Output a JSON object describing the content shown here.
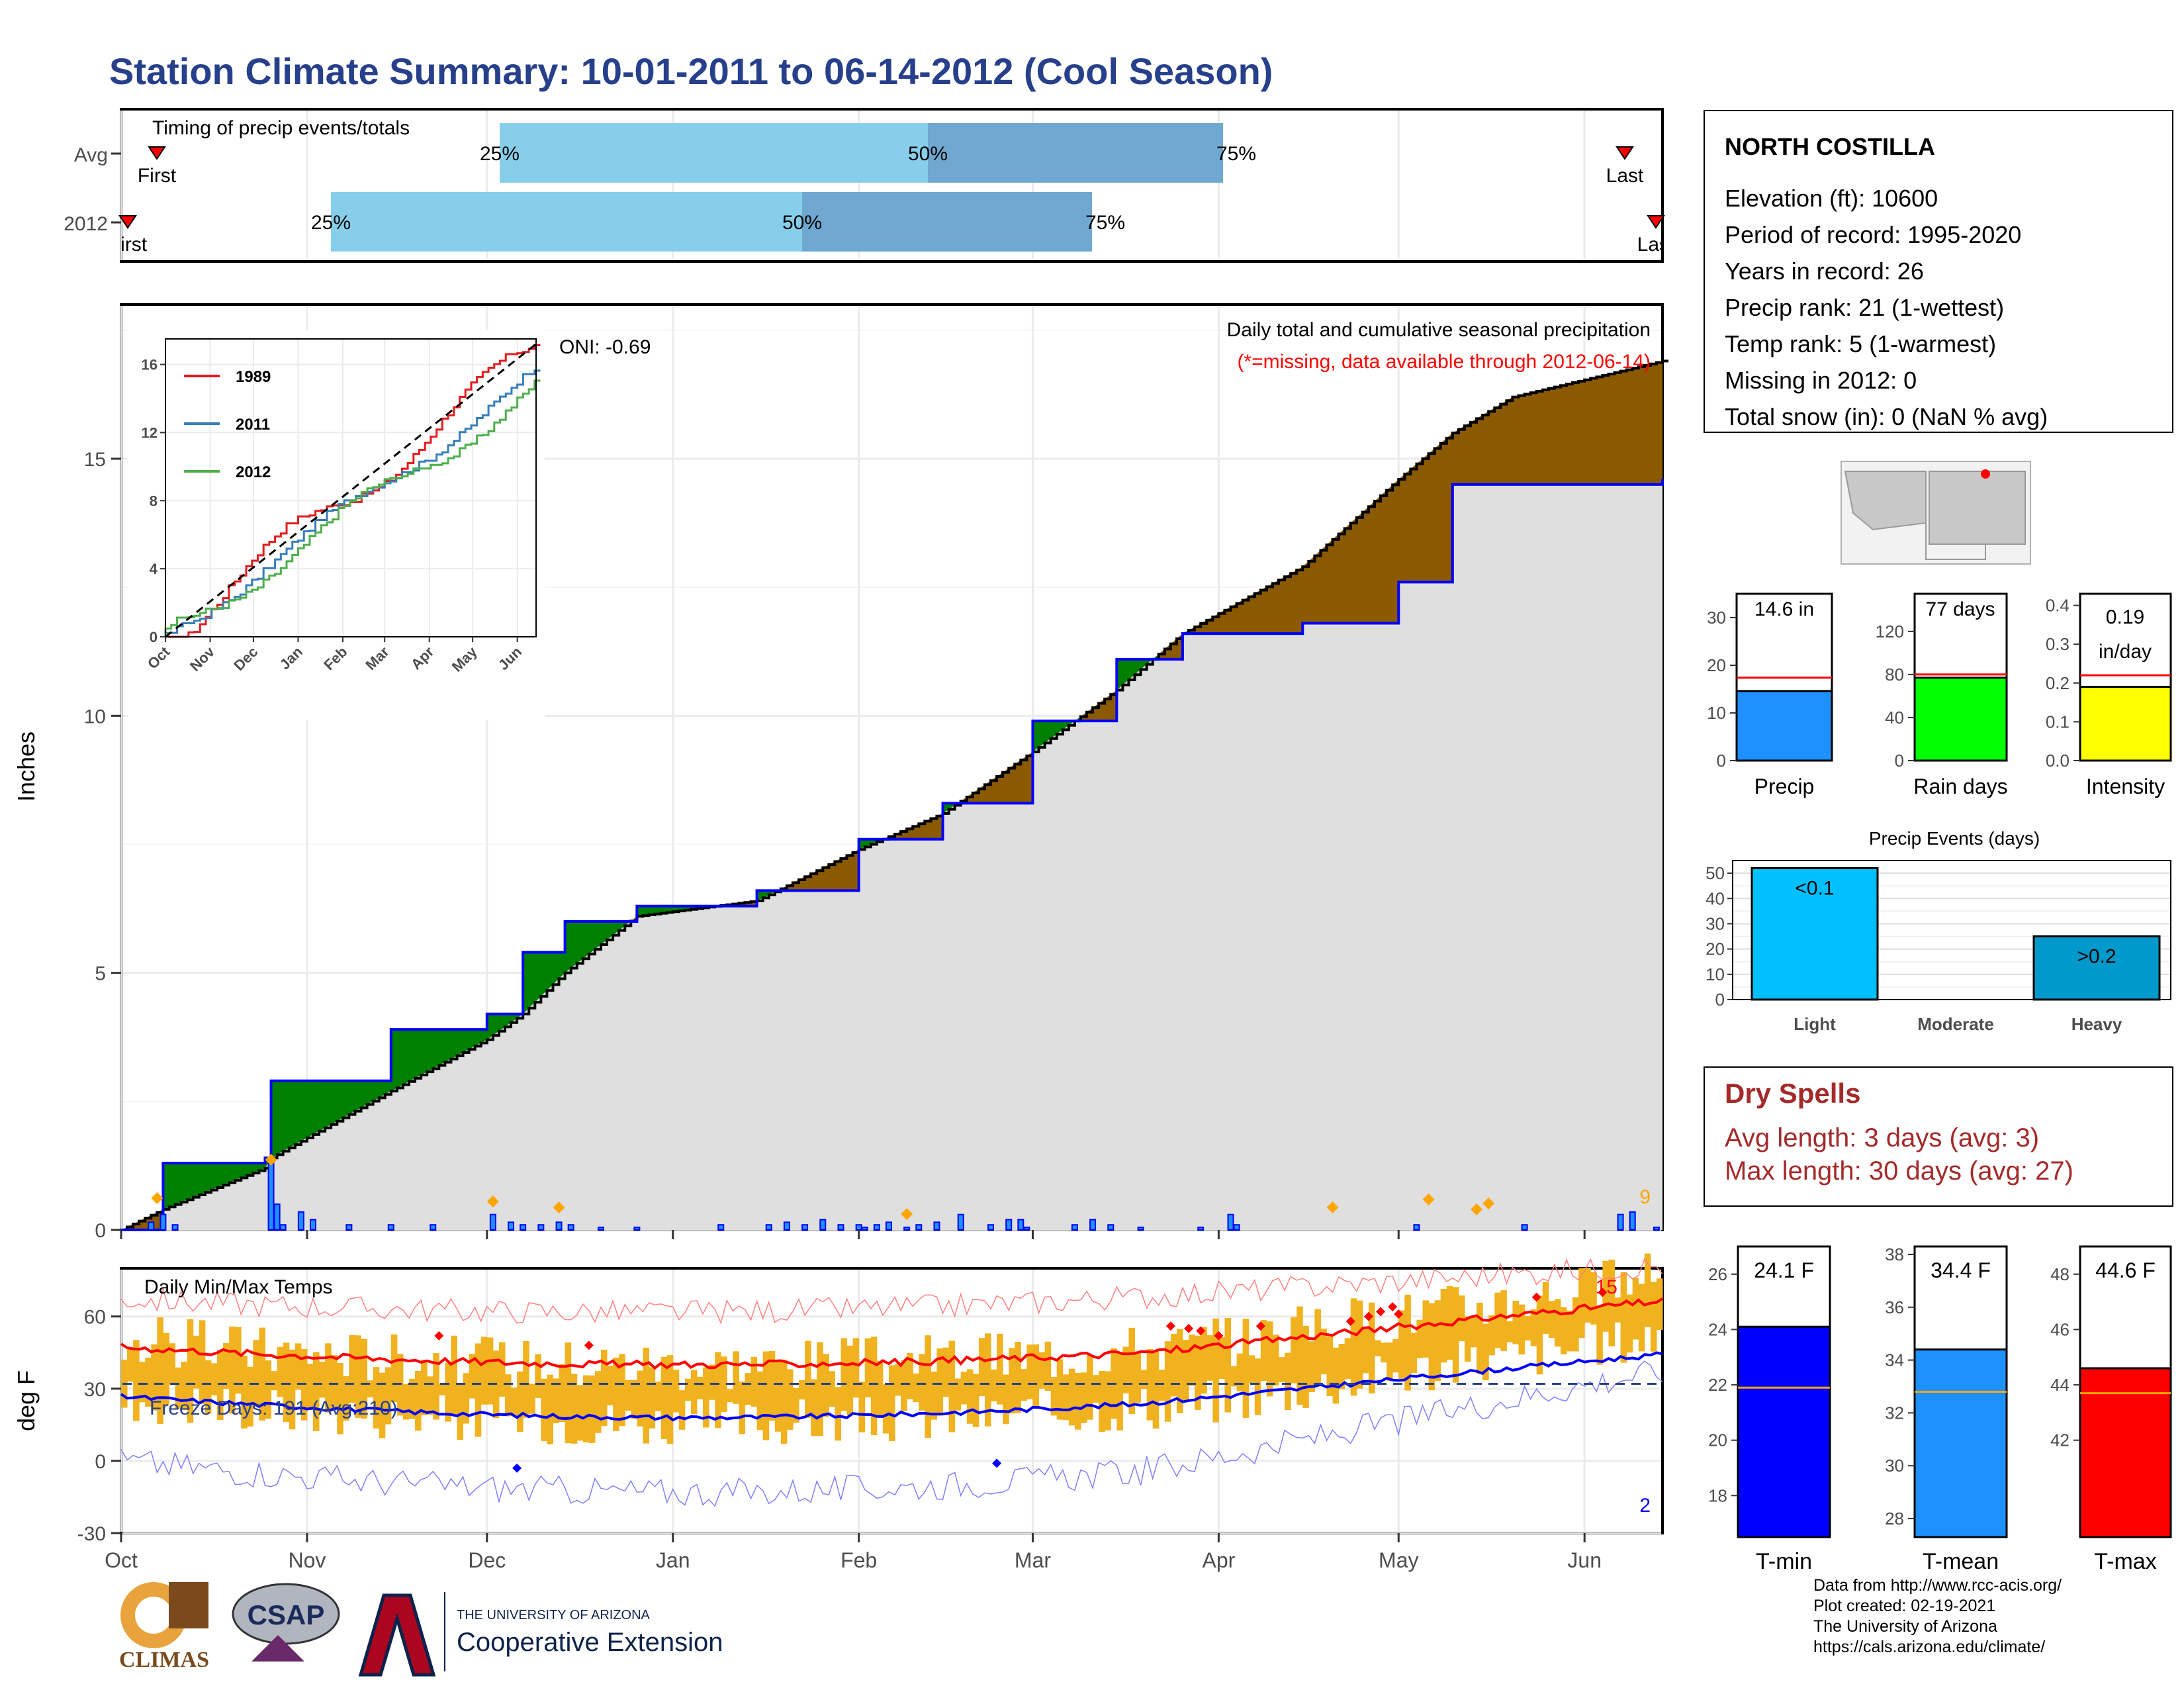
{
  "title": "Station Climate Summary: 10-01-2011 to 06-14-2012 (Cool Season)",
  "timing": {
    "label": "Timing of precip events/totals",
    "rows": [
      {
        "label": "Avg",
        "first": "First",
        "last": "Last",
        "p25": "25%",
        "p50": "50%",
        "p75": "75%"
      },
      {
        "label": "2012",
        "first": "First",
        "last": "Last",
        "p25": "25%",
        "p50": "50%",
        "p75": "75%"
      }
    ]
  },
  "precip": {
    "ylabel": "Inches",
    "oni": "ONI: -0.69",
    "caption": "Daily total and cumulative seasonal precipitation",
    "missing_note": "(*=missing, data available through 2012-06-14)",
    "corner_value": "9",
    "yticks": [
      "0",
      "5",
      "10",
      "15"
    ],
    "months": [
      "Oct",
      "Nov",
      "Dec",
      "Jan",
      "Feb",
      "Mar",
      "Apr",
      "May",
      "Jun"
    ]
  },
  "inset": {
    "legend": [
      "1989",
      "2011",
      "2012"
    ],
    "yticks": [
      "0",
      "4",
      "8",
      "12",
      "16"
    ],
    "months": [
      "Oct",
      "Nov",
      "Dec",
      "Jan",
      "Feb",
      "Mar",
      "Apr",
      "May",
      "Jun"
    ]
  },
  "temps": {
    "ylabel": "deg F",
    "label": "Daily Min/Max Temps",
    "freeze": "Freeze Days: 191 (Avg:210)",
    "hot_count": "15",
    "cold_count": "2",
    "yticks": [
      "-30",
      "0",
      "30",
      "60"
    ]
  },
  "station": {
    "name": "NORTH COSTILLA",
    "lines": [
      "Elevation (ft): 10600",
      "Period of record: 1995-2020",
      "Years in record: 26",
      "Precip rank: 21 (1-wettest)",
      "Temp rank: 5 (1-warmest)",
      "Missing in 2012: 0",
      "Total snow (in): 0 (NaN % avg)"
    ]
  },
  "mini": {
    "precip": {
      "label": "Precip",
      "value": "14.6 in",
      "yticks": [
        "0",
        "10",
        "20",
        "30"
      ],
      "bar": 14.6,
      "avg": 17.4,
      "ymax": 35
    },
    "raindays": {
      "label": "Rain days",
      "value": "77 days",
      "yticks": [
        "0",
        "40",
        "80",
        "120"
      ],
      "bar": 77,
      "avg": 80,
      "ymax": 155
    },
    "intensity": {
      "label": "Intensity",
      "value1": "0.19",
      "value2": "in/day",
      "yticks": [
        "0.0",
        "0.1",
        "0.2",
        "0.3",
        "0.4"
      ],
      "bar": 0.19,
      "avg": 0.22,
      "ymax": 0.43
    }
  },
  "events": {
    "title": "Precip Events (days)",
    "yticks": [
      "0",
      "10",
      "20",
      "30",
      "40",
      "50"
    ],
    "categories": [
      "Light",
      "Moderate",
      "Heavy"
    ],
    "labels": [
      "<0.1",
      "",
      ">0.2"
    ],
    "values": [
      52,
      0,
      25
    ],
    "colors": [
      "#00BFFF",
      "#1E90FF",
      "#0099CC"
    ]
  },
  "dry": {
    "title": "Dry Spells",
    "avg": "Avg length: 3 days (avg: 3)",
    "max": "Max length: 30 days (avg: 27)"
  },
  "tbars": {
    "tmin": {
      "label": "T-min",
      "value": "24.1 F",
      "yticks": [
        "18",
        "20",
        "22",
        "24",
        "26"
      ],
      "bar": 24.1,
      "avg": 21.9,
      "ymin": 16.5,
      "ymax": 27,
      "color": "#0000FF"
    },
    "tmean": {
      "label": "T-mean",
      "value": "34.4 F",
      "yticks": [
        "28",
        "30",
        "32",
        "34",
        "36",
        "38"
      ],
      "bar": 34.4,
      "avg": 32.8,
      "ymin": 27.3,
      "ymax": 38.3,
      "color": "#1E90FF"
    },
    "tmax": {
      "label": "T-max",
      "value": "44.6 F",
      "yticks": [
        "42",
        "44",
        "46",
        "48"
      ],
      "bar": 44.6,
      "avg": 43.7,
      "ymin": 38.5,
      "ymax": 49,
      "color": "#FF0000"
    }
  },
  "logos": {
    "climas": "CLIMAS",
    "csap": "CSAP",
    "ua_small": "THE UNIVERSITY OF ARIZONA",
    "ua_big": "Cooperative Extension"
  },
  "footer": [
    "Data from http://www.rcc-acis.org/",
    "Plot created: 02-19-2021",
    "The University of Arizona",
    "https://cals.arizona.edu/climate/"
  ],
  "colors": {
    "title": "#27408B",
    "dry": "#A52A2A",
    "gray": "#DFDFDF",
    "green": "#008000",
    "brown": "#8B5A00",
    "blue": "#0000FF",
    "orange": "#FFA500",
    "lightblue": "#87CEEB",
    "midblue": "#6FA8D0"
  },
  "chart_data": {
    "type": "area",
    "title": "Daily total and cumulative seasonal precipitation",
    "ylabel": "Inches",
    "ylim": [
      0,
      17
    ],
    "x": [
      "2011-10-01",
      "2011-10-08",
      "2011-10-25",
      "2011-10-26",
      "2011-11-15",
      "2011-12-01",
      "2011-12-07",
      "2011-12-14",
      "2011-12-26",
      "2012-01-15",
      "2012-02-01",
      "2012-02-15",
      "2012-03-01",
      "2012-03-15",
      "2012-03-26",
      "2012-04-15",
      "2012-05-01",
      "2012-05-10",
      "2012-05-20",
      "2012-06-14"
    ],
    "series": [
      {
        "name": "2012",
        "values": [
          0,
          1.3,
          1.4,
          2.9,
          3.9,
          4.2,
          5.4,
          6.0,
          6.3,
          6.6,
          7.6,
          8.3,
          9.9,
          11.1,
          11.6,
          11.8,
          12.6,
          14.5,
          14.5,
          14.6
        ]
      },
      {
        "name": "Avg",
        "values": [
          0,
          0.4,
          1.2,
          1.4,
          2.7,
          3.7,
          4.2,
          5.0,
          6.1,
          6.4,
          7.4,
          8.1,
          9.3,
          10.5,
          11.6,
          12.9,
          14.6,
          15.5,
          16.2,
          16.9
        ]
      }
    ]
  }
}
